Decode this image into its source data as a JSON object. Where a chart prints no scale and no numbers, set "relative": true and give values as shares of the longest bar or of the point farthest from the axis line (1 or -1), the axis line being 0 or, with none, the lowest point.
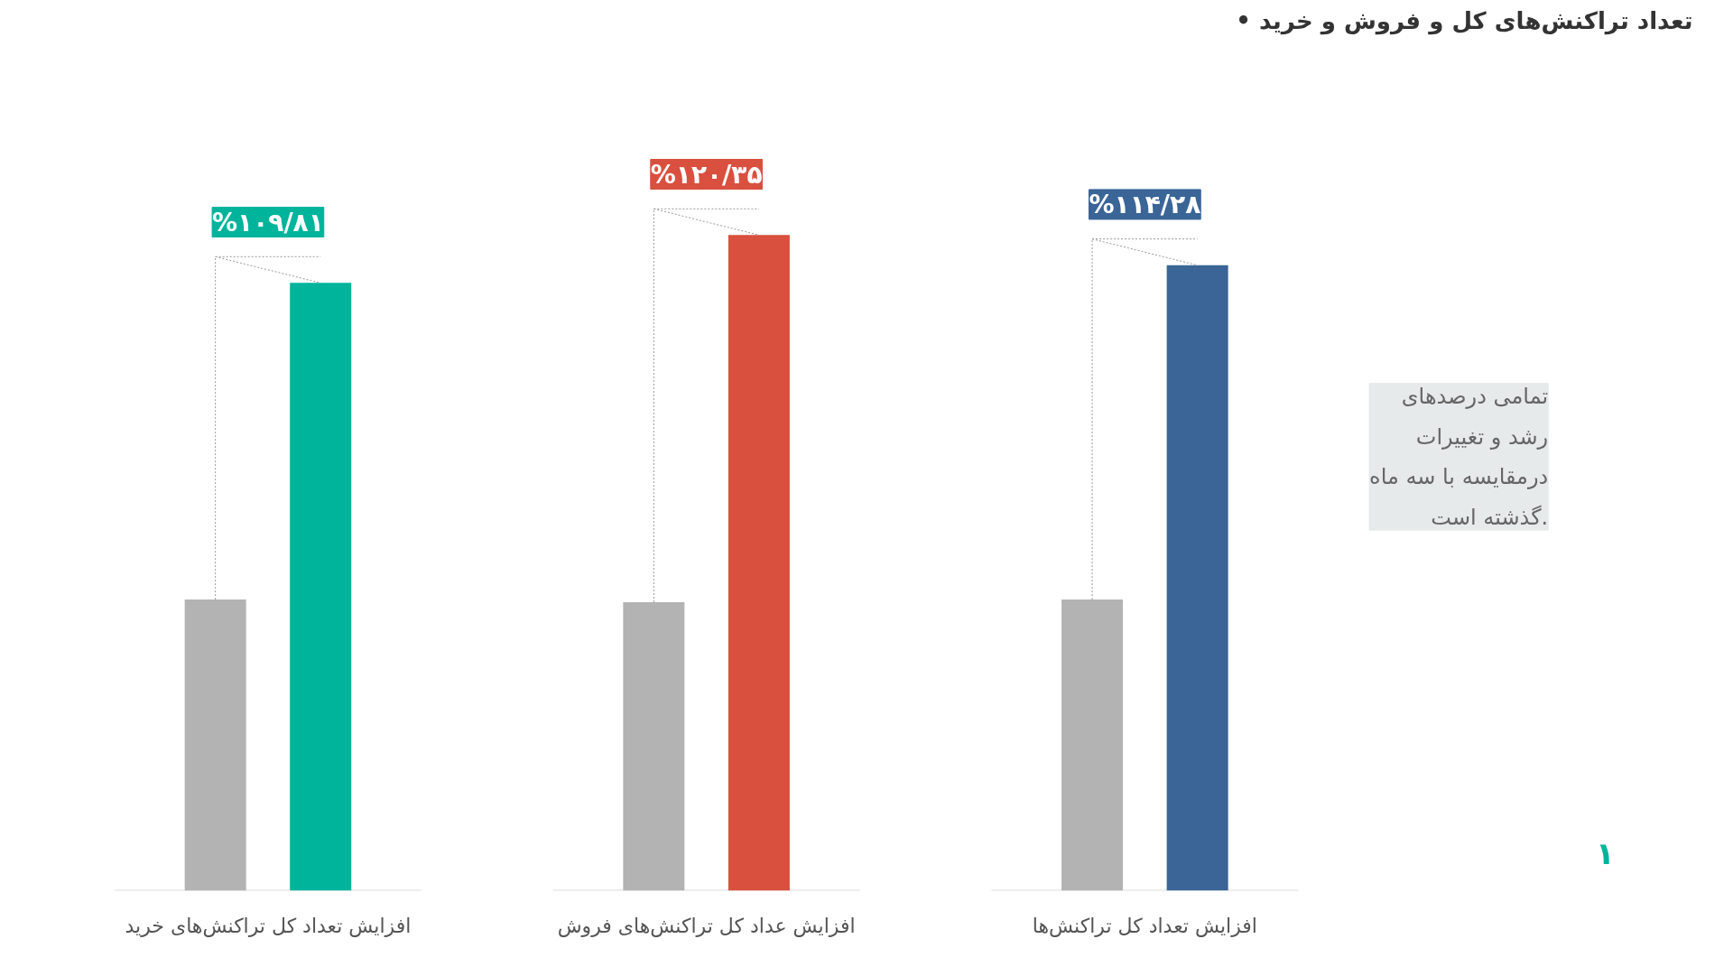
{
  "chart_data": {
    "type": "bar",
    "title": "• تعداد تراکنش‌های کل و فروش و خرید",
    "relative": true,
    "categories": [
      "افزایش تعداد کل تراکنش‌های خرید",
      "افزایش عداد کل تراکنش‌های فروش",
      "افزایش تعداد کل تراکنش‌ها"
    ],
    "series": [
      {
        "color": "#b3b3b3",
        "values": [
          0.444,
          0.44,
          0.444
        ]
      },
      {
        "colors": [
          "#00b39b",
          "#d9503f",
          "#3a6596"
        ],
        "values": [
          0.927,
          1,
          0.954
        ]
      }
    ],
    "annotations": [
      "تمامی درصدهای\nرشد و تغییرات\nدرمقایسه با سه ماه\nگذشته است.",
      "۱",
      "%۱۰۹/۸۱",
      "%۱۲۰/۳۵",
      "%۱۱۴/۲۸"
    ],
    "grid": false
  }
}
